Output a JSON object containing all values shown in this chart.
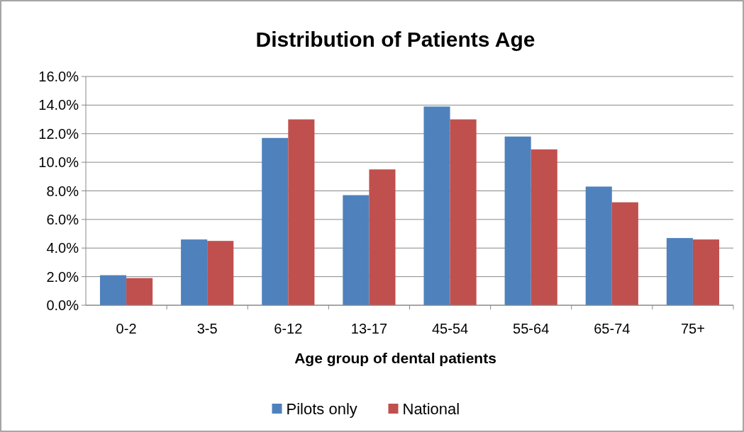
{
  "chart_data": {
    "type": "bar",
    "title": "Distribution of Patients Age",
    "xlabel": "Age group of dental patients",
    "categories": [
      "0-2",
      "3-5",
      "6-12",
      "13-17",
      "45-54",
      "55-64",
      "65-74",
      "75+"
    ],
    "series": [
      {
        "name": "Pilots only",
        "color": "#4f81bd",
        "values": [
          2.1,
          4.6,
          11.7,
          7.7,
          13.9,
          11.8,
          8.3,
          4.7
        ]
      },
      {
        "name": "National",
        "color": "#c0504d",
        "values": [
          1.9,
          4.5,
          13.0,
          9.5,
          13.0,
          10.9,
          7.2,
          4.6
        ]
      }
    ],
    "ylim": [
      0,
      16
    ],
    "yticks": [
      {
        "value": 0,
        "label": "0.0%"
      },
      {
        "value": 2,
        "label": "2.0%"
      },
      {
        "value": 4,
        "label": "4.0%"
      },
      {
        "value": 6,
        "label": "6.0%"
      },
      {
        "value": 8,
        "label": "8.0%"
      },
      {
        "value": 10,
        "label": "10.0%"
      },
      {
        "value": 12,
        "label": "12.0%"
      },
      {
        "value": 14,
        "label": "14.0%"
      },
      {
        "value": 16,
        "label": "16.0%"
      }
    ],
    "grid": "y",
    "legend": "bottom"
  }
}
